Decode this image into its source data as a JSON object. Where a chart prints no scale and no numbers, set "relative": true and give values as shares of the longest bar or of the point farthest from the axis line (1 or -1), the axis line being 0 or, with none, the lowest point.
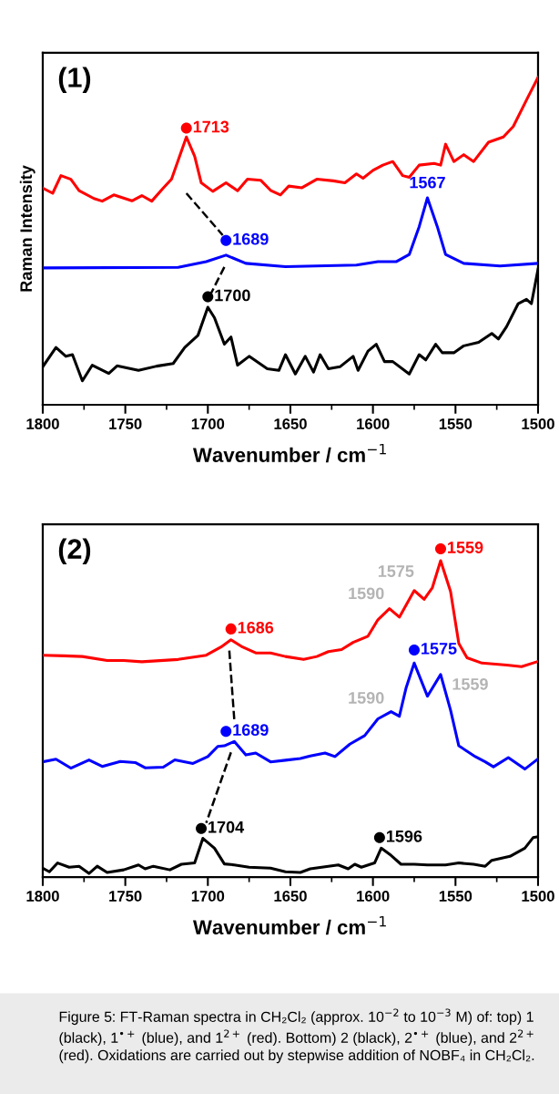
{
  "chart_data": [
    {
      "type": "line",
      "title": "(1)",
      "xlabel": "Wavenumber / cm$^{−1}$",
      "ylabel": "Raman Intensity",
      "relative": true,
      "xlim": [
        1800,
        1500
      ],
      "xticks": [
        1800,
        {
          "value": 1775,
          "label": null
        },
        1750,
        {
          "value": 1725,
          "label": null
        },
        1700,
        {
          "value": 1675,
          "label": null
        },
        1650,
        {
          "value": 1625,
          "label": null
        },
        1600,
        {
          "value": 1575,
          "label": null
        },
        1550,
        {
          "value": 1525,
          "label": null
        },
        1500
      ],
      "series": [
        {
          "color": "#ff0000",
          "x": [
            1800,
            1794,
            1789,
            1783,
            1778,
            1769,
            1764,
            1757,
            1746,
            1740,
            1734,
            1727,
            1722,
            1713,
            1708,
            1704,
            1697,
            1689,
            1682,
            1676,
            1668,
            1662,
            1656,
            1651,
            1643,
            1634,
            1624,
            1617,
            1610,
            1606,
            1600,
            1594,
            1588,
            1582,
            1578,
            1572,
            1563,
            1559,
            1556,
            1551,
            1545,
            1539,
            1530,
            1521,
            1515,
            1506,
            1500
          ],
          "values": [
            0.662,
            0.646,
            0.7,
            0.689,
            0.654,
            0.63,
            0.622,
            0.641,
            0.623,
            0.639,
            0.622,
            0.662,
            0.689,
            0.818,
            0.759,
            0.678,
            0.652,
            0.678,
            0.654,
            0.689,
            0.686,
            0.655,
            0.641,
            0.668,
            0.663,
            0.689,
            0.684,
            0.678,
            0.705,
            0.692,
            0.716,
            0.732,
            0.743,
            0.7,
            0.695,
            0.732,
            0.737,
            0.732,
            0.796,
            0.743,
            0.764,
            0.743,
            0.802,
            0.818,
            0.85,
            0.941,
            1.0
          ]
        },
        {
          "color": "#0000ff",
          "x": [
            1800,
            1718,
            1701,
            1689,
            1677,
            1653,
            1610,
            1597,
            1586,
            1578,
            1572,
            1567,
            1561,
            1556,
            1545,
            1523,
            1500
          ],
          "values": [
            0.418,
            0.42,
            0.437,
            0.457,
            0.432,
            0.422,
            0.427,
            0.437,
            0.437,
            0.459,
            0.544,
            0.632,
            0.544,
            0.459,
            0.432,
            0.424,
            0.432
          ]
        },
        {
          "color": "#000000",
          "x": [
            1800,
            1792,
            1786,
            1782,
            1776,
            1770,
            1760,
            1755,
            1742,
            1731,
            1721,
            1714,
            1706,
            1700,
            1696,
            1690,
            1686,
            1682,
            1675,
            1664,
            1657,
            1653,
            1647,
            1641,
            1636,
            1632,
            1627,
            1620,
            1612,
            1609,
            1603,
            1598,
            1593,
            1588,
            1578,
            1572,
            1568,
            1562,
            1558,
            1551,
            1545,
            1536,
            1528,
            1524,
            1519,
            1512,
            1507,
            1504,
            1500
          ],
          "values": [
            0.116,
            0.175,
            0.148,
            0.153,
            0.073,
            0.121,
            0.096,
            0.119,
            0.105,
            0.118,
            0.126,
            0.175,
            0.212,
            0.298,
            0.266,
            0.185,
            0.207,
            0.121,
            0.148,
            0.11,
            0.105,
            0.153,
            0.094,
            0.148,
            0.1,
            0.153,
            0.11,
            0.116,
            0.148,
            0.105,
            0.164,
            0.185,
            0.132,
            0.132,
            0.094,
            0.153,
            0.137,
            0.185,
            0.159,
            0.159,
            0.18,
            0.191,
            0.218,
            0.201,
            0.239,
            0.309,
            0.322,
            0.309,
            0.414
          ]
        },
        {
          "type": "line",
          "line_style": "dashed",
          "color": "#000000",
          "x": [
            1713,
            1691
          ],
          "values": [
            0.646,
            0.518
          ]
        },
        {
          "type": "line",
          "line_style": "dashed",
          "color": "#000000",
          "x": [
            1690,
            1698
          ],
          "values": [
            0.421,
            0.341
          ]
        },
        {
          "type": "scatter",
          "marker": "circle",
          "color": "#ff0000",
          "x": [
            1713
          ],
          "values": [
            0.845
          ]
        },
        {
          "type": "scatter",
          "marker": "circle",
          "color": "#0000ff",
          "x": [
            1689
          ],
          "values": [
            0.502
          ]
        },
        {
          "type": "scatter",
          "marker": "circle",
          "color": "#000000",
          "x": [
            1700
          ],
          "values": [
            0.33
          ]
        }
      ],
      "annotations": [
        {
          "text": "1713",
          "x": 1713,
          "y": 0.845
        },
        {
          "text": "1689",
          "x": 1689,
          "y": 0.502
        },
        {
          "text": "1567",
          "x": 1567,
          "y": 0.632
        },
        {
          "text": "1700",
          "x": 1700,
          "y": 0.33
        }
      ]
    },
    {
      "type": "line",
      "title": "(2)",
      "xlabel": "Wavenumber / cm$^{−1}$",
      "relative": true,
      "xlim": [
        1800,
        1500
      ],
      "xticks": [
        1800,
        {
          "value": 1775,
          "label": null
        },
        1750,
        {
          "value": 1725,
          "label": null
        },
        1700,
        {
          "value": 1675,
          "label": null
        },
        1650,
        {
          "value": 1625,
          "label": null
        },
        1600,
        {
          "value": 1575,
          "label": null
        },
        1550,
        {
          "value": 1525,
          "label": null
        },
        1500
      ],
      "series": [
        {
          "color": "#ff0000",
          "x": [
            1800,
            1787,
            1776,
            1761,
            1751,
            1740,
            1718,
            1701,
            1692,
            1686,
            1679,
            1671,
            1662,
            1653,
            1642,
            1634,
            1627,
            1619,
            1612,
            1603,
            1597,
            1590,
            1584,
            1575,
            1569,
            1564,
            1559,
            1553,
            1548,
            1543,
            1534,
            1519,
            1510,
            1500
          ],
          "values": [
            0.676,
            0.674,
            0.672,
            0.66,
            0.66,
            0.656,
            0.663,
            0.676,
            0.701,
            0.723,
            0.701,
            0.683,
            0.683,
            0.672,
            0.663,
            0.672,
            0.687,
            0.693,
            0.715,
            0.734,
            0.784,
            0.818,
            0.792,
            0.873,
            0.846,
            0.882,
            0.964,
            0.87,
            0.712,
            0.668,
            0.652,
            0.646,
            0.641,
            0.657
          ]
        },
        {
          "color": "#0000ff",
          "x": [
            1800,
            1792,
            1783,
            1772,
            1764,
            1753,
            1744,
            1738,
            1727,
            1720,
            1709,
            1700,
            1694,
            1690,
            1684,
            1677,
            1671,
            1662,
            1653,
            1644,
            1638,
            1629,
            1623,
            1614,
            1605,
            1597,
            1589,
            1584,
            1580,
            1575,
            1567,
            1559,
            1553,
            1548,
            1538,
            1532,
            1527,
            1518,
            1508,
            1500
          ],
          "values": [
            0.351,
            0.359,
            0.332,
            0.357,
            0.337,
            0.352,
            0.349,
            0.333,
            0.335,
            0.357,
            0.346,
            0.367,
            0.398,
            0.4,
            0.413,
            0.372,
            0.378,
            0.351,
            0.356,
            0.361,
            0.369,
            0.378,
            0.367,
            0.405,
            0.431,
            0.482,
            0.504,
            0.49,
            0.575,
            0.652,
            0.551,
            0.617,
            0.509,
            0.4,
            0.367,
            0.351,
            0.336,
            0.364,
            0.329,
            0.36
          ]
        },
        {
          "color": "#000000",
          "x": [
            1800,
            1796,
            1791,
            1784,
            1778,
            1772,
            1767,
            1761,
            1751,
            1742,
            1738,
            1733,
            1723,
            1716,
            1708,
            1703,
            1696,
            1690,
            1684,
            1675,
            1662,
            1653,
            1644,
            1638,
            1627,
            1621,
            1615,
            1611,
            1607,
            1599,
            1595,
            1589,
            1583,
            1575,
            1567,
            1556,
            1548,
            1539,
            1532,
            1528,
            1517,
            1508,
            1503,
            1500
          ],
          "values": [
            0.027,
            0.016,
            0.043,
            0.03,
            0.033,
            0.011,
            0.033,
            0.014,
            0.022,
            0.037,
            0.025,
            0.033,
            0.022,
            0.039,
            0.043,
            0.118,
            0.088,
            0.04,
            0.037,
            0.03,
            0.027,
            0.016,
            0.014,
            0.025,
            0.033,
            0.037,
            0.025,
            0.039,
            0.03,
            0.043,
            0.088,
            0.066,
            0.039,
            0.039,
            0.037,
            0.037,
            0.043,
            0.039,
            0.033,
            0.051,
            0.063,
            0.088,
            0.12,
            0.123
          ]
        },
        {
          "type": "line",
          "line_style": "dashed",
          "color": "#000000",
          "x": [
            1687,
            1684
          ],
          "values": [
            0.69,
            0.48
          ]
        },
        {
          "type": "line",
          "line_style": "dashed",
          "color": "#000000",
          "x": [
            1686,
            1701
          ],
          "values": [
            0.38,
            0.165
          ]
        },
        {
          "type": "scatter",
          "marker": "circle",
          "color": "#ff0000",
          "x": [
            1686,
            1559
          ],
          "values": [
            0.756,
            1.0
          ]
        },
        {
          "type": "scatter",
          "marker": "circle",
          "color": "#0000ff",
          "x": [
            1689,
            1575
          ],
          "values": [
            0.444,
            0.692
          ]
        },
        {
          "type": "scatter",
          "marker": "circle",
          "color": "#000000",
          "x": [
            1704,
            1596
          ],
          "values": [
            0.148,
            0.12
          ]
        }
      ],
      "annotations": [
        {
          "text": "1686",
          "x": 1686,
          "y": 0.756
        },
        {
          "text": "1559",
          "x": 1559,
          "y": 1.0
        },
        {
          "text": "1689",
          "x": 1689,
          "y": 0.444
        },
        {
          "text": "1575",
          "x": 1575,
          "y": 0.692
        },
        {
          "text": "1704",
          "x": 1704,
          "y": 0.148
        },
        {
          "text": "1596",
          "x": 1596,
          "y": 0.12
        },
        "1575",
        "1590",
        "1590",
        "1559",
        "Figure 5: FT-Raman spectra in CH₂Cl₂ (approx. 10$^{−2}$ to 10$^{−3}$ M) of: top) 1 (black), 1$^{•+}$ (blue), and 1$^{2+}$ (red). Bottom) 2 (black), 2$^{•+}$ (blue), and 2$^{2+}$ (red). Oxidations are carried out by stepwise addition of NOBF₄ in CH₂Cl₂."
      ]
    }
  ]
}
